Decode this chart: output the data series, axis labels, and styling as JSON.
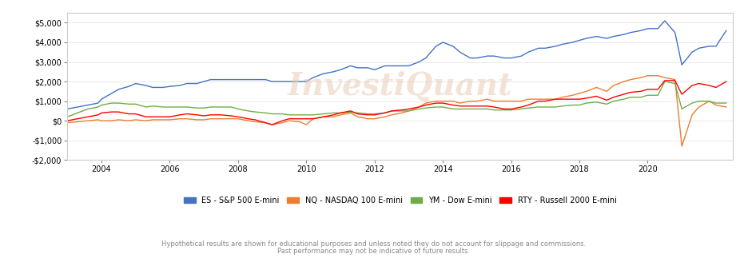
{
  "title": "",
  "watermark": "InvestiQuant",
  "xlabel": "",
  "ylabel": "",
  "ylim": [
    -2000,
    5500
  ],
  "xlim": [
    2003,
    2022.5
  ],
  "yticks": [
    -2000,
    -1000,
    0,
    1000,
    2000,
    3000,
    4000,
    5000
  ],
  "xticks": [
    2004,
    2006,
    2008,
    2010,
    2012,
    2014,
    2016,
    2018,
    2020
  ],
  "bg_color": "#ffffff",
  "grid_color": "#e0e0e0",
  "legend_labels": [
    "ES - S&P 500 E-mini",
    "NQ - NASDAQ 100 E-mini",
    "YM - Dow E-mini",
    "RTY - Russell 2000 E-mini"
  ],
  "legend_colors": [
    "#4472c4",
    "#ed7d31",
    "#70ad47",
    "#ff0000"
  ],
  "disclaimer1": "Hypothetical results are shown for educational purposes and unless noted they do not account for slippage and commissions.",
  "disclaimer2": "Past performance may not be indicative of future results.",
  "series": {
    "ES": {
      "color": "#4472c4",
      "x": [
        2003.0,
        2003.3,
        2003.6,
        2003.9,
        2004.0,
        2004.3,
        2004.5,
        2004.8,
        2005.0,
        2005.3,
        2005.5,
        2005.8,
        2006.0,
        2006.3,
        2006.5,
        2006.8,
        2007.0,
        2007.2,
        2007.5,
        2007.8,
        2008.0,
        2008.3,
        2008.5,
        2008.8,
        2009.0,
        2009.3,
        2009.5,
        2009.8,
        2010.0,
        2010.2,
        2010.5,
        2010.8,
        2011.0,
        2011.3,
        2011.5,
        2011.8,
        2012.0,
        2012.3,
        2012.5,
        2012.8,
        2013.0,
        2013.3,
        2013.5,
        2013.8,
        2014.0,
        2014.3,
        2014.5,
        2014.8,
        2015.0,
        2015.3,
        2015.5,
        2015.8,
        2016.0,
        2016.3,
        2016.5,
        2016.8,
        2017.0,
        2017.3,
        2017.5,
        2017.8,
        2018.0,
        2018.2,
        2018.5,
        2018.8,
        2019.0,
        2019.3,
        2019.5,
        2019.8,
        2020.0,
        2020.3,
        2020.5,
        2020.8,
        2021.0,
        2021.3,
        2021.5,
        2021.8,
        2022.0,
        2022.3
      ],
      "y": [
        600,
        700,
        800,
        900,
        1100,
        1400,
        1600,
        1750,
        1900,
        1800,
        1700,
        1700,
        1750,
        1800,
        1900,
        1900,
        2000,
        2100,
        2100,
        2100,
        2100,
        2100,
        2100,
        2100,
        2000,
        2000,
        2000,
        2000,
        2000,
        2200,
        2400,
        2500,
        2600,
        2800,
        2700,
        2700,
        2600,
        2800,
        2800,
        2800,
        2800,
        3000,
        3200,
        3800,
        4000,
        3800,
        3500,
        3200,
        3200,
        3300,
        3300,
        3200,
        3200,
        3300,
        3500,
        3700,
        3700,
        3800,
        3900,
        4000,
        4100,
        4200,
        4300,
        4200,
        4300,
        4400,
        4500,
        4600,
        4700,
        4700,
        5100,
        4500,
        2850,
        3500,
        3700,
        3800,
        3800,
        4600
      ]
    },
    "NQ": {
      "color": "#ed7d31",
      "x": [
        2003.0,
        2003.3,
        2003.6,
        2003.9,
        2004.0,
        2004.3,
        2004.5,
        2004.8,
        2005.0,
        2005.3,
        2005.5,
        2005.8,
        2006.0,
        2006.3,
        2006.5,
        2006.8,
        2007.0,
        2007.2,
        2007.5,
        2007.8,
        2008.0,
        2008.3,
        2008.5,
        2008.8,
        2009.0,
        2009.3,
        2009.5,
        2009.8,
        2010.0,
        2010.2,
        2010.5,
        2010.8,
        2011.0,
        2011.3,
        2011.5,
        2011.8,
        2012.0,
        2012.3,
        2012.5,
        2012.8,
        2013.0,
        2013.3,
        2013.5,
        2013.8,
        2014.0,
        2014.3,
        2014.5,
        2014.8,
        2015.0,
        2015.3,
        2015.5,
        2015.8,
        2016.0,
        2016.3,
        2016.5,
        2016.8,
        2017.0,
        2017.3,
        2017.5,
        2017.8,
        2018.0,
        2018.2,
        2018.5,
        2018.8,
        2019.0,
        2019.3,
        2019.5,
        2019.8,
        2020.0,
        2020.3,
        2020.5,
        2020.8,
        2021.0,
        2021.3,
        2021.5,
        2021.8,
        2022.0,
        2022.3
      ],
      "y": [
        -100,
        -50,
        0,
        50,
        0,
        0,
        50,
        0,
        50,
        0,
        50,
        50,
        50,
        100,
        100,
        50,
        50,
        100,
        100,
        100,
        100,
        0,
        -50,
        -100,
        -200,
        -100,
        0,
        -50,
        -200,
        100,
        200,
        200,
        300,
        400,
        200,
        100,
        100,
        200,
        300,
        400,
        500,
        700,
        900,
        1000,
        1000,
        1000,
        900,
        1000,
        1000,
        1100,
        1000,
        1000,
        1000,
        1000,
        1100,
        1100,
        1100,
        1100,
        1200,
        1300,
        1400,
        1500,
        1700,
        1500,
        1800,
        2000,
        2100,
        2200,
        2300,
        2300,
        2200,
        2100,
        -1300,
        300,
        700,
        1000,
        800,
        700
      ]
    },
    "YM": {
      "color": "#70ad47",
      "x": [
        2003.0,
        2003.3,
        2003.6,
        2003.9,
        2004.0,
        2004.3,
        2004.5,
        2004.8,
        2005.0,
        2005.3,
        2005.5,
        2005.8,
        2006.0,
        2006.3,
        2006.5,
        2006.8,
        2007.0,
        2007.2,
        2007.5,
        2007.8,
        2008.0,
        2008.3,
        2008.5,
        2008.8,
        2009.0,
        2009.3,
        2009.5,
        2009.8,
        2010.0,
        2010.2,
        2010.5,
        2010.8,
        2011.0,
        2011.3,
        2011.5,
        2011.8,
        2012.0,
        2012.3,
        2012.5,
        2012.8,
        2013.0,
        2013.3,
        2013.5,
        2013.8,
        2014.0,
        2014.3,
        2014.5,
        2014.8,
        2015.0,
        2015.3,
        2015.5,
        2015.8,
        2016.0,
        2016.3,
        2016.5,
        2016.8,
        2017.0,
        2017.3,
        2017.5,
        2017.8,
        2018.0,
        2018.2,
        2018.5,
        2018.8,
        2019.0,
        2019.3,
        2019.5,
        2019.8,
        2020.0,
        2020.3,
        2020.5,
        2020.8,
        2021.0,
        2021.3,
        2021.5,
        2021.8,
        2022.0,
        2022.3
      ],
      "y": [
        200,
        400,
        600,
        700,
        800,
        900,
        900,
        850,
        850,
        700,
        750,
        700,
        700,
        700,
        700,
        650,
        650,
        700,
        700,
        700,
        600,
        500,
        450,
        400,
        350,
        350,
        300,
        300,
        300,
        300,
        350,
        400,
        400,
        450,
        400,
        350,
        350,
        400,
        500,
        500,
        500,
        600,
        650,
        700,
        700,
        600,
        600,
        600,
        600,
        600,
        550,
        550,
        550,
        600,
        650,
        700,
        700,
        700,
        750,
        800,
        800,
        900,
        950,
        850,
        1000,
        1100,
        1200,
        1200,
        1300,
        1300,
        2000,
        1900,
        600,
        900,
        1000,
        1000,
        900,
        900
      ]
    },
    "RTY": {
      "color": "#ff0000",
      "x": [
        2003.0,
        2003.3,
        2003.6,
        2003.9,
        2004.0,
        2004.3,
        2004.5,
        2004.8,
        2005.0,
        2005.3,
        2005.5,
        2005.8,
        2006.0,
        2006.3,
        2006.5,
        2006.8,
        2007.0,
        2007.2,
        2007.5,
        2007.8,
        2008.0,
        2008.3,
        2008.5,
        2008.8,
        2009.0,
        2009.3,
        2009.5,
        2009.8,
        2010.0,
        2010.2,
        2010.5,
        2010.8,
        2011.0,
        2011.3,
        2011.5,
        2011.8,
        2012.0,
        2012.3,
        2012.5,
        2012.8,
        2013.0,
        2013.3,
        2013.5,
        2013.8,
        2014.0,
        2014.3,
        2014.5,
        2014.8,
        2015.0,
        2015.3,
        2015.5,
        2015.8,
        2016.0,
        2016.3,
        2016.5,
        2016.8,
        2017.0,
        2017.3,
        2017.5,
        2017.8,
        2018.0,
        2018.2,
        2018.5,
        2018.8,
        2019.0,
        2019.3,
        2019.5,
        2019.8,
        2020.0,
        2020.3,
        2020.5,
        2020.8,
        2021.0,
        2021.3,
        2021.5,
        2021.8,
        2022.0,
        2022.3
      ],
      "y": [
        0,
        100,
        200,
        300,
        400,
        450,
        450,
        350,
        350,
        200,
        200,
        200,
        200,
        300,
        350,
        300,
        250,
        300,
        300,
        250,
        200,
        100,
        50,
        -100,
        -200,
        0,
        100,
        100,
        100,
        100,
        200,
        300,
        400,
        500,
        350,
        300,
        300,
        400,
        500,
        550,
        600,
        700,
        800,
        900,
        900,
        800,
        750,
        750,
        750,
        750,
        700,
        600,
        600,
        700,
        800,
        1000,
        1000,
        1100,
        1100,
        1100,
        1100,
        1150,
        1250,
        1050,
        1200,
        1350,
        1450,
        1500,
        1600,
        1600,
        2050,
        2050,
        1350,
        1800,
        1900,
        1800,
        1700,
        2000
      ]
    }
  }
}
